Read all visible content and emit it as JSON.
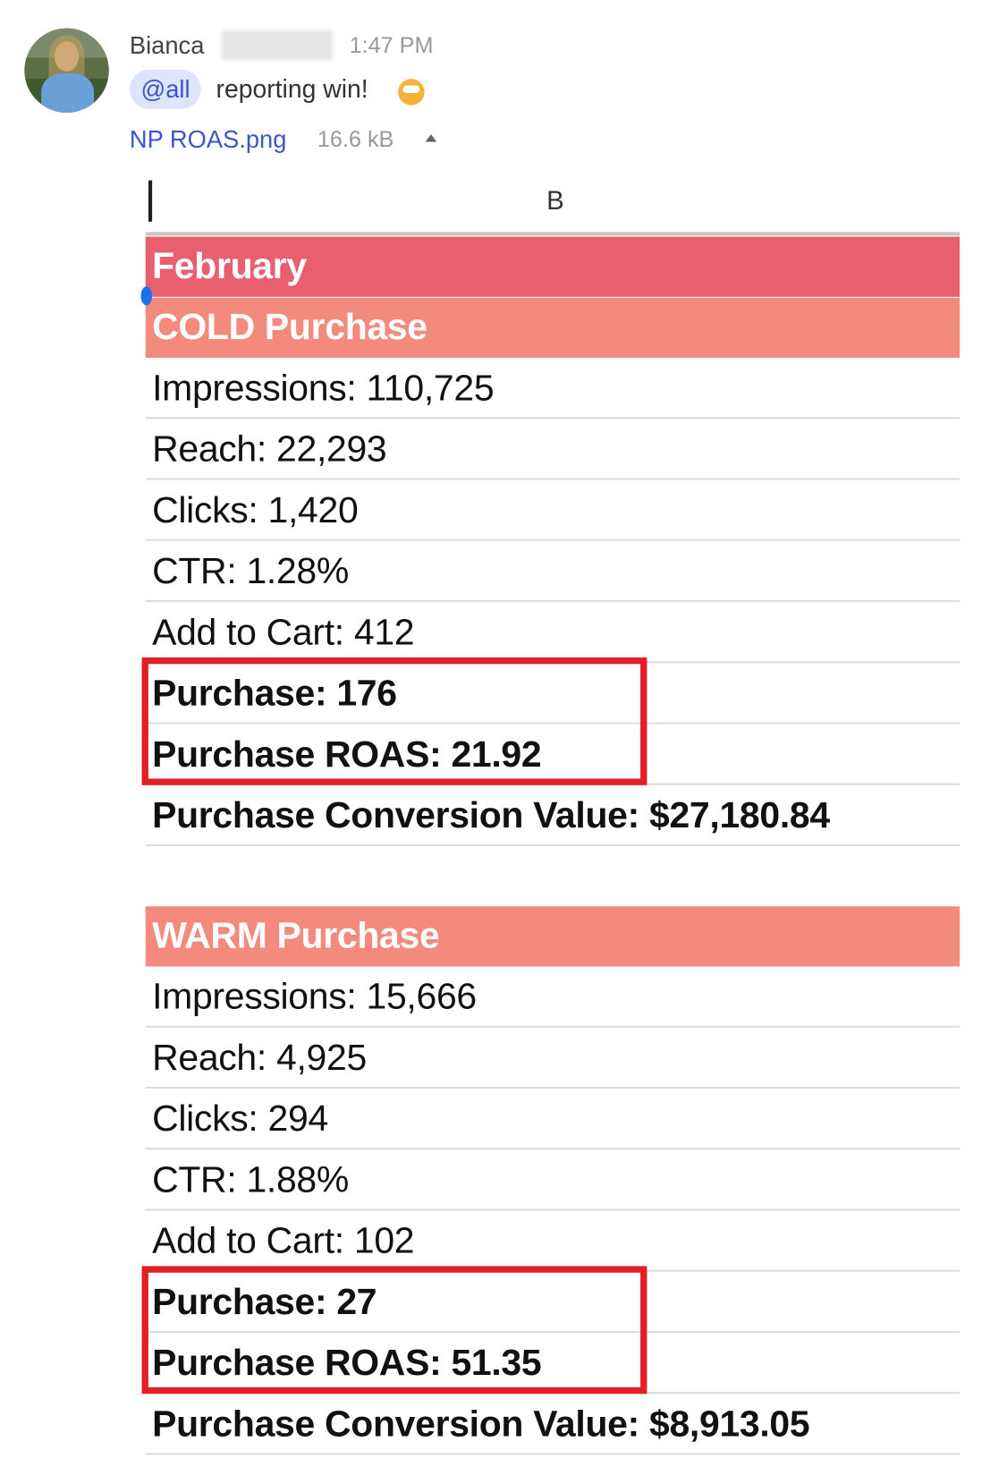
{
  "message": {
    "sender": "Bianca",
    "time": "1:47 PM",
    "mention": "@all",
    "text": "reporting win!",
    "attachment": {
      "name": "NP ROAS.png",
      "size": "16.6 kB"
    }
  },
  "sheet": {
    "column": "B",
    "month": "February",
    "sections": [
      {
        "title": "COLD Purchase",
        "rows": [
          {
            "text": "Impressions: 110,725",
            "bold": false,
            "highlighted": false
          },
          {
            "text": "Reach: 22,293",
            "bold": false,
            "highlighted": false
          },
          {
            "text": "Clicks: 1,420",
            "bold": false,
            "highlighted": false
          },
          {
            "text": "CTR: 1.28%",
            "bold": false,
            "highlighted": false
          },
          {
            "text": "Add to Cart: 412",
            "bold": false,
            "highlighted": false
          },
          {
            "text": "Purchase: 176",
            "bold": true,
            "highlighted": true
          },
          {
            "text": "Purchase ROAS: 21.92",
            "bold": true,
            "highlighted": true
          },
          {
            "text": "Purchase Conversion Value: $27,180.84",
            "bold": true,
            "highlighted": false
          }
        ]
      },
      {
        "title": "WARM Purchase",
        "rows": [
          {
            "text": "Impressions: 15,666",
            "bold": false,
            "highlighted": false
          },
          {
            "text": "Reach: 4,925",
            "bold": false,
            "highlighted": false
          },
          {
            "text": "Clicks: 294",
            "bold": false,
            "highlighted": false
          },
          {
            "text": "CTR: 1.88%",
            "bold": false,
            "highlighted": false
          },
          {
            "text": "Add to Cart: 102",
            "bold": false,
            "highlighted": false
          },
          {
            "text": "Purchase: 27",
            "bold": true,
            "highlighted": true
          },
          {
            "text": "Purchase ROAS: 51.35",
            "bold": true,
            "highlighted": true
          },
          {
            "text": "Purchase Conversion Value: $8,913.05",
            "bold": true,
            "highlighted": false
          }
        ]
      }
    ]
  }
}
